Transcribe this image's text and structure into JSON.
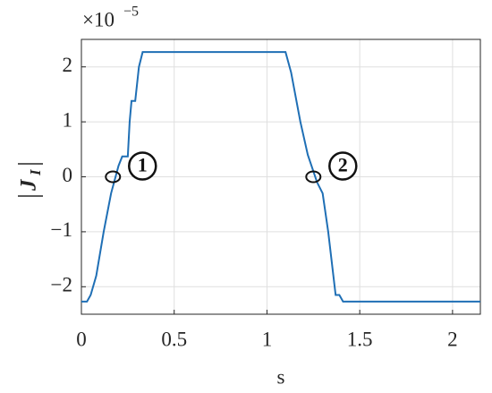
{
  "chart_data": {
    "type": "line",
    "x": [
      0,
      0.03,
      0.05,
      0.08,
      0.12,
      0.16,
      0.2,
      0.22,
      0.25,
      0.26,
      0.27,
      0.29,
      0.31,
      0.33,
      1.1,
      1.13,
      1.18,
      1.22,
      1.25,
      1.27,
      1.3,
      1.33,
      1.37,
      1.39,
      1.41,
      2.15
    ],
    "values": [
      -2.27,
      -2.27,
      -2.15,
      -1.8,
      -1.0,
      -0.3,
      0.2,
      0.37,
      0.37,
      1.0,
      1.38,
      1.38,
      2.0,
      2.27,
      2.27,
      1.9,
      1.0,
      0.4,
      0.1,
      -0.1,
      -0.3,
      -1.0,
      -2.15,
      -2.15,
      -2.27,
      -2.27
    ],
    "color": "#1f6fb5",
    "xlim": [
      0,
      2.15
    ],
    "ylim": [
      -2.5,
      2.5
    ],
    "xticks": [
      0,
      0.5,
      1,
      1.5,
      2
    ],
    "yticks": [
      {
        "value": -2,
        "label": "−2"
      },
      {
        "value": -1,
        "label": "−1"
      },
      0,
      1,
      2
    ],
    "grid": true,
    "xlabel": "s",
    "ylabel_main": "J",
    "ylabel_sub": "I",
    "y_multiplier": "×10",
    "y_multiplier_exponent": "−5",
    "annotations": [
      {
        "text": "1",
        "x": 0.17,
        "y": 0
      },
      {
        "text": "2",
        "x": 1.25,
        "y": 0
      }
    ]
  }
}
